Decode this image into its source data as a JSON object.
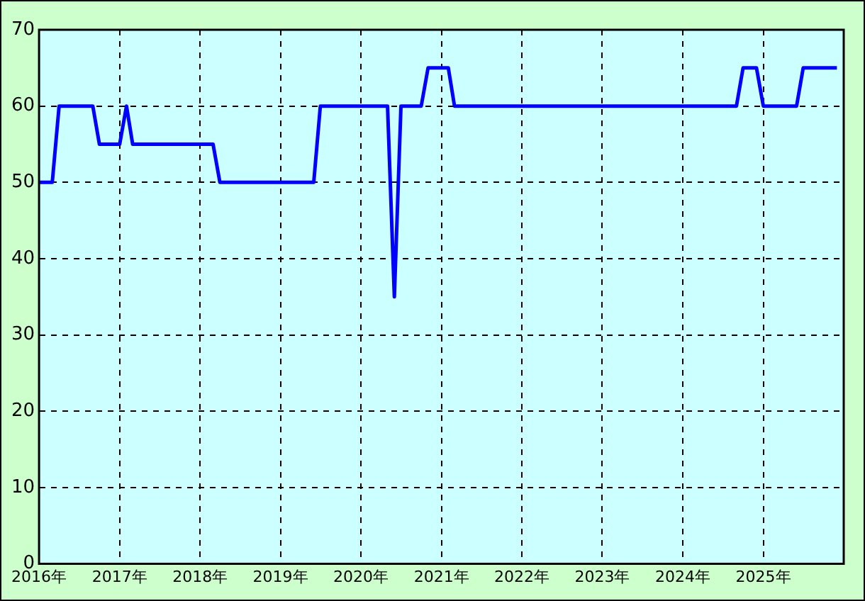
{
  "chart_data": {
    "type": "line",
    "x": [
      "2016-01",
      "2016-03",
      "2016-04",
      "2016-09",
      "2016-10",
      "2017-01",
      "2017-02",
      "2017-03",
      "2018-03",
      "2018-04",
      "2019-06",
      "2019-07",
      "2020-05",
      "2020-06",
      "2020-07",
      "2020-10",
      "2020-11",
      "2021-02",
      "2021-03",
      "2024-09",
      "2024-10",
      "2024-12",
      "2025-01",
      "2025-06",
      "2025-07",
      "2025-12"
    ],
    "series": [
      {
        "color": "#0000ff",
        "values": [
          50,
          50,
          60,
          60,
          55,
          55,
          60,
          55,
          55,
          50,
          50,
          60,
          60,
          35,
          60,
          60,
          65,
          65,
          60,
          60,
          65,
          65,
          60,
          60,
          65,
          65
        ]
      }
    ],
    "xlim": [
      "2016-01",
      "2026-01"
    ],
    "xticks": [
      {
        "value": "2016",
        "label": "2016年"
      },
      {
        "value": "2017",
        "label": "2017年"
      },
      {
        "value": "2018",
        "label": "2018年"
      },
      {
        "value": "2019",
        "label": "2019年"
      },
      {
        "value": "2020",
        "label": "2020年"
      },
      {
        "value": "2021",
        "label": "2021年"
      },
      {
        "value": "2022",
        "label": "2022年"
      },
      {
        "value": "2023",
        "label": "2023年"
      },
      {
        "value": "2024",
        "label": "2024年"
      },
      {
        "value": "2025",
        "label": "2025年"
      }
    ],
    "ylim": [
      0,
      70
    ],
    "yticks": [
      0,
      10,
      20,
      30,
      40,
      50,
      60,
      70
    ],
    "grid": true,
    "legend": false,
    "marker": "none",
    "line_style": "solid"
  }
}
